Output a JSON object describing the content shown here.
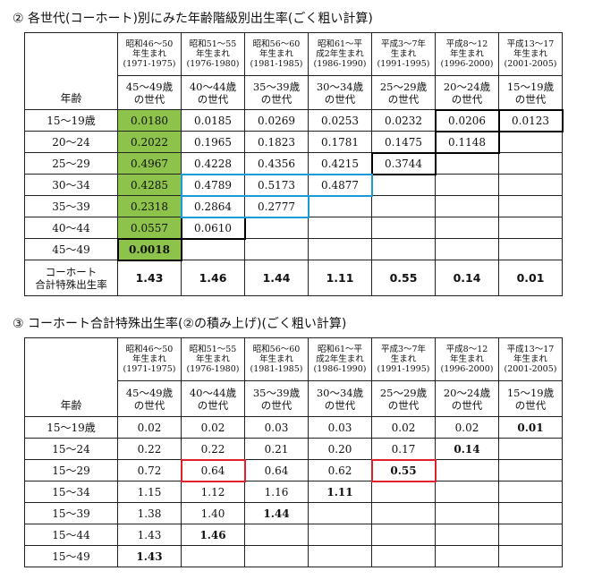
{
  "section1": {
    "title": "② 各世代(コーホート)別にみた年齢階級別出生率(ごく粗い計算)",
    "age_header": "年齢",
    "generations": [
      {
        "era": "昭和46～50\n年生まれ\n(1971-1975)",
        "gen": "45～49歳\nの世代"
      },
      {
        "era": "昭和51～55\n年生まれ\n(1976-1980)",
        "gen": "40～44歳\nの世代"
      },
      {
        "era": "昭和56～60\n年生まれ\n(1981-1985)",
        "gen": "35～39歳\nの世代"
      },
      {
        "era": "昭和61～平\n成2年生まれ\n(1986-1990)",
        "gen": "30～34歳\nの世代"
      },
      {
        "era": "平成3～7年\n生まれ\n(1991-1995)",
        "gen": "25～29歳\nの世代"
      },
      {
        "era": "平成8～12\n年生まれ\n(1996-2000)",
        "gen": "20～24歳\nの世代"
      },
      {
        "era": "平成13～17\n年生まれ\n(2001-2005)",
        "gen": "15～19歳\nの世代"
      }
    ],
    "rows": [
      {
        "age": "15～19歳",
        "values": [
          "0.0180",
          "0.0185",
          "0.0269",
          "0.0253",
          "0.0232",
          "0.0206",
          "0.0123"
        ]
      },
      {
        "age": "20～24",
        "values": [
          "0.2022",
          "0.1965",
          "0.1823",
          "0.1781",
          "0.1475",
          "0.1148",
          ""
        ]
      },
      {
        "age": "25～29",
        "values": [
          "0.4967",
          "0.4228",
          "0.4356",
          "0.4215",
          "0.3744",
          "",
          ""
        ]
      },
      {
        "age": "30～34",
        "values": [
          "0.4285",
          "0.4789",
          "0.5173",
          "0.4877",
          "",
          "",
          ""
        ]
      },
      {
        "age": "35～39",
        "values": [
          "0.2318",
          "0.2864",
          "0.2777",
          "",
          "",
          "",
          ""
        ]
      },
      {
        "age": "40～44",
        "values": [
          "0.0557",
          "0.0610",
          "",
          "",
          "",
          "",
          ""
        ]
      },
      {
        "age": "45～49",
        "values": [
          "0.0018",
          "",
          "",
          "",
          "",
          "",
          ""
        ]
      }
    ],
    "tfr_label": "コーホート\n合計特殊出生率",
    "tfr_values": [
      "1.43",
      "1.46",
      "1.44",
      "1.11",
      "0.55",
      "0.14",
      "0.01"
    ],
    "colors": {
      "highlight_green": "#8dc34a",
      "box_blue": "#1a9ad6",
      "box_black": "#000000"
    }
  },
  "section2": {
    "title": "③ コーホート合計特殊出生率(②の積み上げ)(ごく粗い計算)",
    "age_header": "年齢",
    "generations": [
      {
        "era": "昭和46～50\n年生まれ\n(1971-1975)",
        "gen": "45～49歳\nの世代"
      },
      {
        "era": "昭和51～55\n年生まれ\n(1976-1980)",
        "gen": "40～44歳\nの世代"
      },
      {
        "era": "昭和56～60\n年生まれ\n(1981-1985)",
        "gen": "35～39歳\nの世代"
      },
      {
        "era": "昭和61～平\n成2年生まれ\n(1986-1990)",
        "gen": "30～34歳\nの世代"
      },
      {
        "era": "平成3～7年\n生まれ\n(1991-1995)",
        "gen": "25～29歳\nの世代"
      },
      {
        "era": "平成8～12\n年生まれ\n(1996-2000)",
        "gen": "20～24歳\nの世代"
      },
      {
        "era": "平成13～17\n年生まれ\n(2001-2005)",
        "gen": "15～19歳\nの世代"
      }
    ],
    "rows": [
      {
        "age": "15～19歳",
        "values": [
          "0.02",
          "0.02",
          "0.03",
          "0.03",
          "0.02",
          "0.02",
          "0.01"
        ]
      },
      {
        "age": "15～24",
        "values": [
          "0.22",
          "0.22",
          "0.21",
          "0.20",
          "0.17",
          "0.14",
          ""
        ]
      },
      {
        "age": "15～29",
        "values": [
          "0.72",
          "0.64",
          "0.64",
          "0.62",
          "0.55",
          "",
          ""
        ]
      },
      {
        "age": "15～34",
        "values": [
          "1.15",
          "1.12",
          "1.16",
          "1.11",
          "",
          "",
          ""
        ]
      },
      {
        "age": "15～39",
        "values": [
          "1.38",
          "1.40",
          "1.44",
          "",
          "",
          "",
          ""
        ]
      },
      {
        "age": "15～44",
        "values": [
          "1.43",
          "1.46",
          "",
          "",
          "",
          "",
          ""
        ]
      },
      {
        "age": "15～49",
        "values": [
          "1.43",
          "",
          "",
          "",
          "",
          "",
          ""
        ]
      }
    ],
    "colors": {
      "box_red": "#e0202a"
    }
  }
}
